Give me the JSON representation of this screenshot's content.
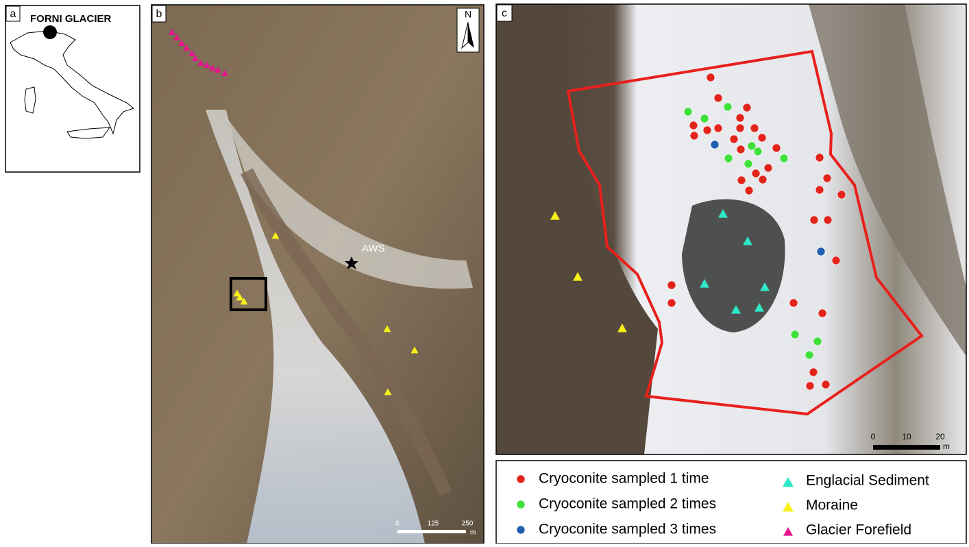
{
  "panel_a": {
    "label": "a",
    "title": "FORNI GLACIER"
  },
  "panel_b": {
    "label": "b",
    "north": "N",
    "station": "AWS",
    "scale": [
      "0",
      "125",
      "250"
    ],
    "unit": "m"
  },
  "panel_c": {
    "label": "c",
    "scale": [
      "0",
      "10",
      "20"
    ],
    "unit": "m"
  },
  "legend": [
    "Cryoconite sampled 1 time",
    "Cryoconite sampled 2 times",
    "Cryoconite sampled 3 times",
    "Englacial Sediment",
    "Moraine",
    "Glacier Forefield"
  ]
}
